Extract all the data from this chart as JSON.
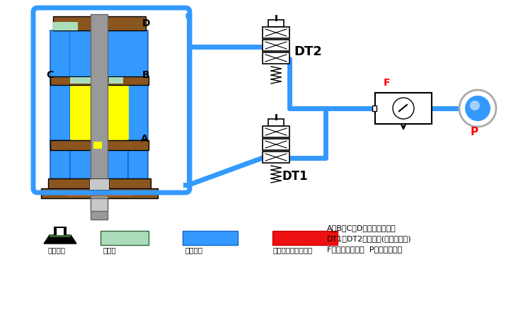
{
  "blue": "#3399FF",
  "yellow": "#FFFF00",
  "light_green": "#AADDBB",
  "red": "#EE1111",
  "brown": "#8B5520",
  "gray": "#999999",
  "light_gray": "#C8C8C8",
  "text1": "A、B、C、D为增压缸进气口",
  "text2": "DT1、DT2为电磁阀(助力控制阀)",
  "text3": "F为空气过滤装置  P为压缩空气源",
  "leg1": "排气状态",
  "leg2": "液压油",
  "leg3": "压缩空气",
  "leg4": "液压油放压产生高压"
}
